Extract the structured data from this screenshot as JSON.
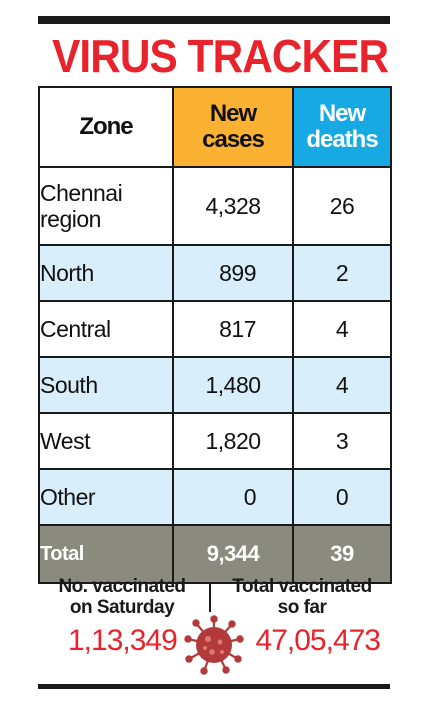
{
  "title": "VIRUS TRACKER",
  "table": {
    "headers": {
      "zone": "Zone",
      "cases_line1": "New",
      "cases_line2": "cases",
      "deaths_line1": "New",
      "deaths_line2": "deaths"
    },
    "rows": [
      {
        "zone_line1": "Chennai",
        "zone_line2": "region",
        "cases": "4,328",
        "deaths": "26"
      },
      {
        "zone": "North",
        "cases": "899",
        "deaths": "2"
      },
      {
        "zone": "Central",
        "cases": "817",
        "deaths": "4"
      },
      {
        "zone": "South",
        "cases": "1,480",
        "deaths": "4"
      },
      {
        "zone": "West",
        "cases": "1,820",
        "deaths": "3"
      },
      {
        "zone": "Other",
        "cases": "0",
        "deaths": "0"
      }
    ],
    "total": {
      "zone": "Total",
      "cases": "9,344",
      "deaths": "39"
    }
  },
  "vaccination": {
    "saturday_label_line1": "No. vaccinated",
    "saturday_label_line2": "on Saturday",
    "saturday_value": "1,13,349",
    "total_label_line1": "Total vaccinated",
    "total_label_line2": "so far",
    "total_value": "47,05,473"
  },
  "colors": {
    "title": "#e8232b",
    "cases_header": "#fbb233",
    "deaths_header": "#16a9e4",
    "row_alt": "#d9eefb",
    "total_row": "#8a8a7e",
    "virus": "#b33a3a"
  },
  "icons": {
    "virus": "coronavirus-icon"
  }
}
